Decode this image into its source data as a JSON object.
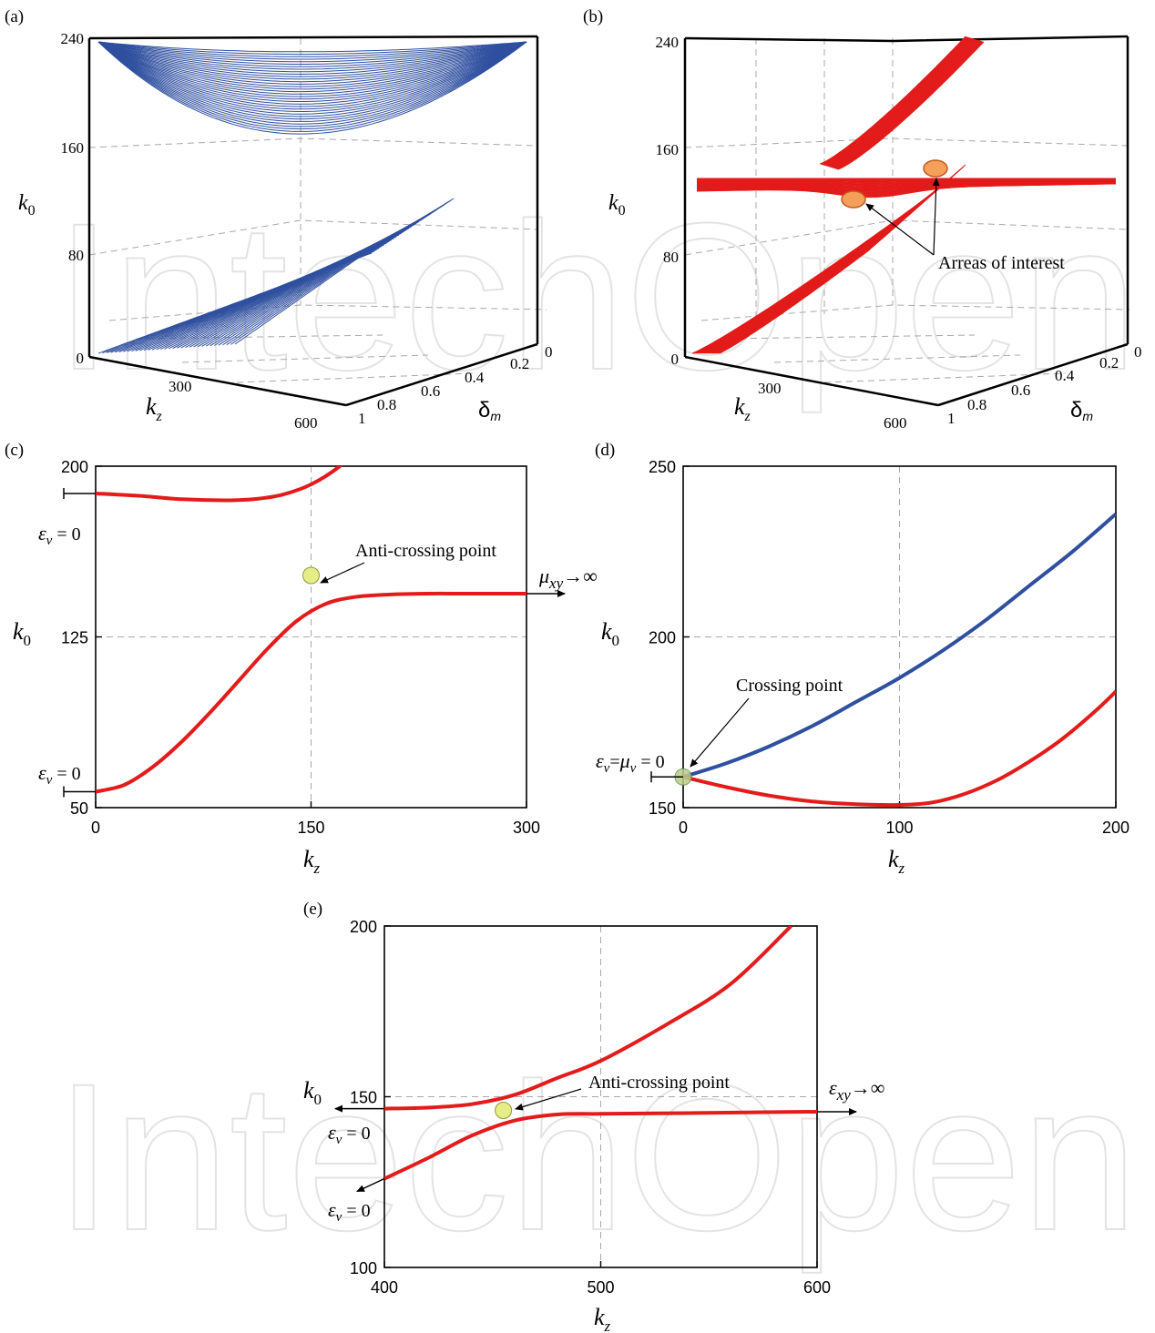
{
  "watermark": "IntechOpen",
  "panels": {
    "a": {
      "label": "(a)",
      "zlabel": "k",
      "zsub": "0",
      "xlabel": "k",
      "xsub": "z",
      "ylabel": "δ",
      "ysub": "m"
    },
    "b": {
      "label": "(b)",
      "zlabel": "k",
      "zsub": "0",
      "xlabel": "k",
      "xsub": "z",
      "ylabel": "δ",
      "ysub": "m",
      "annotation": "Arreas of interest"
    },
    "c": {
      "label": "(c)",
      "ylabel": "k",
      "ysub": "0",
      "xlabel": "k",
      "xsub": "z",
      "eps_top": "ε",
      "eps_top_sub": "v",
      "eps_top_rest": " = 0",
      "eps_bot": "ε",
      "eps_bot_sub": "v",
      "eps_bot_rest": " = 0",
      "annotation": "Anti-crossing point",
      "arrow_mu": "μ",
      "arrow_sub": "xy",
      "arrow_rest": "→∞"
    },
    "d": {
      "label": "(d)",
      "ylabel": "k",
      "ysub": "0",
      "xlabel": "k",
      "xsub": "z",
      "annotation": "Crossing point",
      "eps_a": "ε",
      "eps_a_sub": "v",
      "eps_mid": "=",
      "eps_b": "μ",
      "eps_b_sub": "v",
      "eps_rest": " = 0"
    },
    "e": {
      "label": "(e)",
      "ylabel": "k",
      "ysub": "0",
      "xlabel": "k",
      "xsub": "z",
      "annotation": "Anti-crossing point",
      "arrow_eps": "ε",
      "arrow_sub": "xy",
      "arrow_rest": "→∞",
      "eps1": "ε",
      "eps1_sub": "v",
      "eps1_rest": " = 0",
      "eps2": "ε",
      "eps2_sub": "v",
      "eps2_rest": " = 0"
    }
  },
  "chart_data": [
    {
      "id": "a",
      "type": "surface3d",
      "z_ticks": [
        "0",
        "80",
        "160",
        "240"
      ],
      "x_ticks": [
        "300",
        "600"
      ],
      "y_ticks": [
        "0",
        "0.2",
        "0.4",
        "0.6",
        "0.8",
        "1"
      ],
      "color": "#2f4f9f"
    },
    {
      "id": "b",
      "type": "surface3d",
      "z_ticks": [
        "0",
        "80",
        "160",
        "240"
      ],
      "x_ticks": [
        "300",
        "600"
      ],
      "y_ticks": [
        "0",
        "0.2",
        "0.4",
        "0.6",
        "0.8",
        "1"
      ],
      "color": "#e31b1b"
    },
    {
      "id": "c",
      "type": "line",
      "xlim": [
        0,
        300
      ],
      "ylim": [
        50,
        200
      ],
      "x_ticks": [
        "0",
        "150",
        "300"
      ],
      "y_ticks": [
        "50",
        "125",
        "200"
      ],
      "series": [
        {
          "color": "#e31b1b",
          "x": [
            0,
            30,
            60,
            90,
            110,
            130,
            150,
            170,
            190,
            210
          ],
          "y": [
            188,
            187,
            185.5,
            185,
            185.5,
            187.5,
            192,
            200,
            212,
            226
          ]
        },
        {
          "color": "#e31b1b",
          "x": [
            0,
            20,
            40,
            60,
            80,
            100,
            120,
            140,
            160,
            180,
            200,
            230,
            260,
            300
          ],
          "y": [
            57,
            60,
            68,
            79,
            92,
            106,
            120,
            132,
            139.5,
            142.5,
            143.5,
            144,
            144,
            144
          ]
        }
      ],
      "marker": {
        "x": 150,
        "y": 152
      }
    },
    {
      "id": "d",
      "type": "line",
      "xlim": [
        0,
        200
      ],
      "ylim": [
        150,
        250
      ],
      "x_ticks": [
        "0",
        "100",
        "200"
      ],
      "y_ticks": [
        "150",
        "200",
        "250"
      ],
      "series": [
        {
          "color": "#2f4f9f",
          "x": [
            0,
            20,
            40,
            60,
            80,
            100,
            120,
            140,
            160,
            180,
            200
          ],
          "y": [
            159,
            163,
            168,
            174,
            181,
            188,
            196,
            205,
            215,
            225,
            236
          ]
        },
        {
          "color": "#e31b1b",
          "x": [
            0,
            20,
            40,
            60,
            80,
            100,
            115,
            130,
            145,
            160,
            175,
            190,
            200
          ],
          "y": [
            159,
            156,
            153.5,
            151.8,
            151,
            150.8,
            151.5,
            154,
            158,
            163.5,
            170,
            178,
            184
          ]
        }
      ],
      "marker": {
        "x": 0,
        "y": 159
      }
    },
    {
      "id": "e",
      "type": "line",
      "xlim": [
        400,
        600
      ],
      "ylim": [
        100,
        200
      ],
      "x_ticks": [
        "400",
        "500",
        "600"
      ],
      "y_ticks": [
        "100",
        "150",
        "200"
      ],
      "series": [
        {
          "color": "#e31b1b",
          "x": [
            400,
            420,
            440,
            460,
            480,
            500,
            530,
            560,
            588
          ],
          "y": [
            146.5,
            146.8,
            147.8,
            150.5,
            155.5,
            160.5,
            171,
            183,
            200
          ]
        },
        {
          "color": "#e31b1b",
          "x": [
            400,
            420,
            440,
            460,
            480,
            500,
            540,
            580,
            600
          ],
          "y": [
            126,
            132,
            138.5,
            143,
            144.8,
            145,
            145.2,
            145.5,
            145.6
          ]
        }
      ],
      "marker": {
        "x": 455,
        "y": 146
      }
    }
  ]
}
